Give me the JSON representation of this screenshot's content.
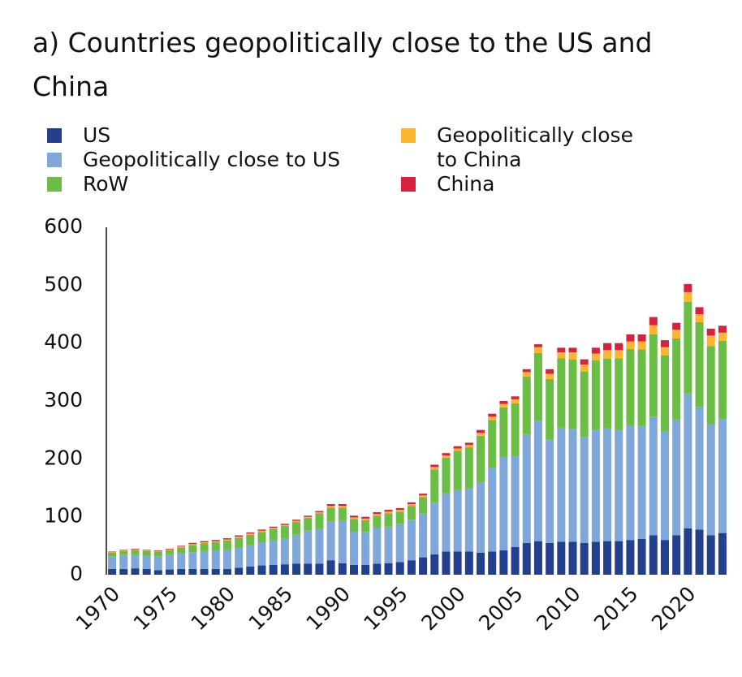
{
  "chart_data": {
    "type": "stacked_bar",
    "title": "a) Countries geopolitically close to the US and China",
    "categories": [
      1970,
      1971,
      1972,
      1973,
      1974,
      1975,
      1976,
      1977,
      1978,
      1979,
      1980,
      1981,
      1982,
      1983,
      1984,
      1985,
      1986,
      1987,
      1988,
      1989,
      1990,
      1991,
      1992,
      1993,
      1994,
      1995,
      1996,
      1997,
      1998,
      1999,
      2000,
      2001,
      2002,
      2003,
      2004,
      2005,
      2006,
      2007,
      2008,
      2009,
      2010,
      2011,
      2012,
      2013,
      2014,
      2015,
      2016,
      2017,
      2018,
      2019,
      2020,
      2021,
      2022,
      2023
    ],
    "xticks": [
      1970,
      1975,
      1980,
      1985,
      1990,
      1995,
      2000,
      2005,
      2010,
      2015,
      2020
    ],
    "ylim": [
      0,
      600
    ],
    "yticks": [
      0,
      100,
      200,
      300,
      400,
      500,
      600
    ],
    "grid": false,
    "series": [
      {
        "name": "US",
        "color": "#253f8f",
        "values": [
          10,
          10,
          11,
          10,
          8,
          9,
          10,
          10,
          10,
          10,
          10,
          12,
          14,
          16,
          17,
          18,
          19,
          19,
          19,
          25,
          20,
          17,
          17,
          19,
          20,
          22,
          25,
          30,
          35,
          40,
          40,
          40,
          38,
          40,
          42,
          48,
          55,
          58,
          55,
          57,
          57,
          55,
          57,
          58,
          58,
          60,
          62,
          68,
          60,
          68,
          80,
          78,
          68,
          72
        ]
      },
      {
        "name": "Geopolitically close to US",
        "color": "#7fa7d9",
        "values": [
          22,
          24,
          24,
          23,
          24,
          25,
          27,
          29,
          31,
          32,
          34,
          35,
          37,
          40,
          42,
          45,
          50,
          58,
          61,
          67,
          74,
          58,
          57,
          63,
          63,
          66,
          70,
          76,
          90,
          101,
          106,
          110,
          122,
          145,
          162,
          158,
          187,
          208,
          178,
          197,
          195,
          183,
          193,
          195,
          192,
          198,
          195,
          205,
          187,
          200,
          233,
          212,
          192,
          197
        ]
      },
      {
        "name": "RoW",
        "color": "#6abd45",
        "values": [
          6,
          7,
          8,
          8,
          8,
          9,
          10,
          12,
          13,
          14,
          15,
          17,
          18,
          18,
          20,
          21,
          22,
          21,
          26,
          24,
          22,
          21,
          20,
          20,
          23,
          21,
          24,
          28,
          57,
          61,
          68,
          70,
          80,
          82,
          85,
          90,
          100,
          117,
          105,
          120,
          120,
          113,
          120,
          120,
          124,
          132,
          132,
          142,
          132,
          140,
          158,
          146,
          135,
          135
        ]
      },
      {
        "name": "Geopolitically close to China",
        "color": "#fbb52f",
        "values": [
          1,
          1,
          1,
          1,
          1,
          1,
          2,
          2,
          2,
          2,
          2,
          2,
          2,
          2,
          2,
          2,
          2,
          2,
          2,
          3,
          3,
          3,
          3,
          3,
          3,
          3,
          3,
          3,
          4,
          4,
          4,
          4,
          5,
          6,
          6,
          7,
          8,
          10,
          9,
          10,
          12,
          12,
          12,
          15,
          14,
          13,
          14,
          16,
          14,
          15,
          17,
          14,
          18,
          14
        ]
      },
      {
        "name": "China",
        "color": "#d7223e",
        "values": [
          1,
          1,
          1,
          1,
          1,
          1,
          1,
          2,
          2,
          2,
          2,
          2,
          2,
          2,
          2,
          2,
          2,
          2,
          2,
          3,
          3,
          3,
          3,
          3,
          3,
          3,
          3,
          3,
          4,
          4,
          4,
          4,
          5,
          5,
          5,
          5,
          5,
          5,
          8,
          8,
          8,
          9,
          10,
          12,
          12,
          12,
          12,
          14,
          12,
          12,
          14,
          12,
          12,
          12
        ]
      }
    ]
  }
}
